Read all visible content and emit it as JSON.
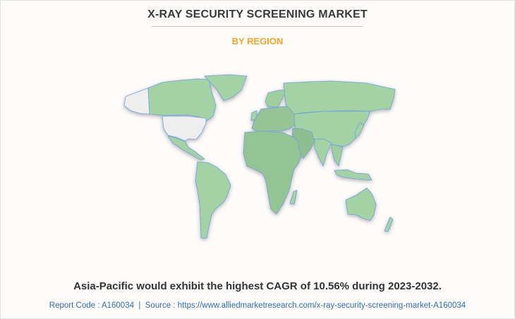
{
  "header": {
    "title": "X-RAY SECURITY SCREENING MARKET",
    "subtitle": "BY REGION"
  },
  "map": {
    "colors": {
      "highlighted": "#a3d3a4",
      "not_highlighted": "#eeeeee",
      "border": "#6f9fe0",
      "title": "#3a3a3a",
      "subtitle": "#f5a623",
      "source": "#2e6db4"
    },
    "regions": [
      "Alaska",
      "Canada",
      "Greenland",
      "United States",
      "Mexico & Central America",
      "South America",
      "Europe",
      "Scandinavia",
      "United Kingdom",
      "Russia",
      "Asia",
      "Middle East",
      "India",
      "Southeast Asia",
      "Indonesia",
      "Japan",
      "Africa",
      "Madagascar",
      "Australia",
      "New Zealand"
    ]
  },
  "footer": {
    "caption": "Asia-Pacific would exhibit the highest CAGR of 10.56% during 2023-2032.",
    "source": "Report Code : A160034  |  Source : https://www.alliedmarketresearch.com/x-ray-security-screening-market-A160034"
  }
}
